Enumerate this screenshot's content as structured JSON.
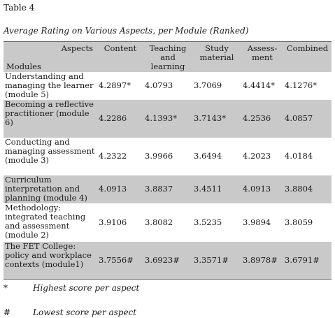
{
  "table_label": "Table 4",
  "table_title": "Average Rating on Various Aspects, per Module (Ranked)",
  "header": {
    "aspects": "Aspects",
    "modules": "Modules",
    "columns": [
      "Content",
      "Teaching and learning",
      "Study material",
      "Assess-ment",
      "Combined"
    ]
  },
  "rows": [
    {
      "module": "Understanding and managing the learner (module 5)",
      "values": [
        "4.2897*",
        "4.0793",
        "3.7069",
        "4.4414*",
        "4.1276*"
      ]
    },
    {
      "module": "Becoming a reflective practitioner (module 6)",
      "values": [
        "4.2286",
        "4.1393*",
        "3.7143*",
        "4.2536",
        "4.0857"
      ]
    },
    {
      "module": "Conducting and managing assessment (module 3)",
      "values": [
        "4.2322",
        "3.9966",
        "3.6494",
        "4.2023",
        "4.0184"
      ]
    },
    {
      "module": "Curriculum interpretation and planning (module 4)",
      "values": [
        "4.0913",
        "3.8837",
        "3.4511",
        "4.0913",
        "3.8804"
      ]
    },
    {
      "module": "Methodology: integrated teaching and assessment (module 2)",
      "values": [
        "3.9106",
        "3.8082",
        "3.5235",
        "3.9894",
        "3.8059"
      ]
    },
    {
      "module": "The FET College: policy and workplace contexts (module1)",
      "values": [
        "3.7556#",
        "3.6923#",
        "3.3571#",
        "3.8978#",
        "3.6791#"
      ]
    }
  ],
  "footnotes": [
    {
      "symbol": "*",
      "text": "Highest score per aspect"
    },
    {
      "symbol": "#",
      "text": "Lowest score per aspect"
    }
  ]
}
